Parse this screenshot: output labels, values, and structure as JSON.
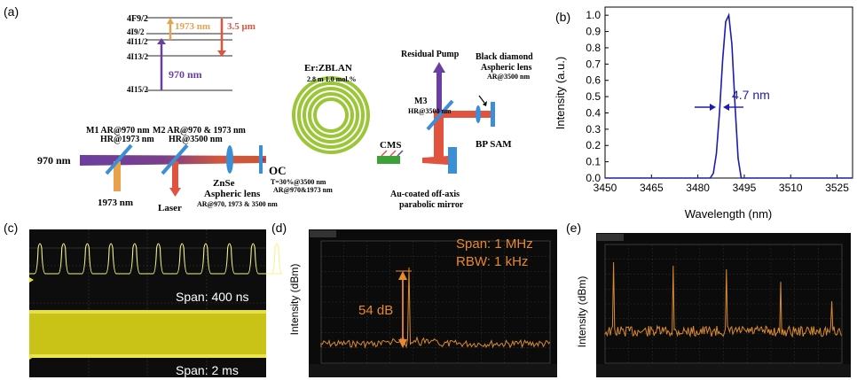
{
  "panels": {
    "a": "(a)",
    "b": "(b)",
    "c": "(c)",
    "d": "(d)",
    "e": "(e)"
  },
  "energy_levels": {
    "f92": "4F9/2",
    "i92": "4I9/2",
    "i112": "4I11/2",
    "i132": "4I13/2",
    "i152": "4I15/2",
    "pump_1973": "1973 nm",
    "emission_35": "3.5 μm",
    "pump_970": "970 nm"
  },
  "setup": {
    "m1_label": "M1 AR@970 nm",
    "m1_hr": "HR@1973 nm",
    "m2_label": "M2 AR@970 & 1973 nm",
    "m2_hr": "HR@3500 nm",
    "input_970": "970 nm",
    "out_1973": "1973 nm",
    "laser": "Laser",
    "znse": "ZnSe",
    "aspheric": "Aspheric lens",
    "aspheric_ar": "AR@970, 1973 & 3500 nm",
    "oc": "OC",
    "oc_t": "T=30%@3500  nm",
    "oc_ar": "AR@970&1973  nm",
    "fiber": "Er:ZBLAN",
    "fiber_spec": "2.8 m 1.0 mol.%",
    "cms": "CMS",
    "residual": "Residual Pump",
    "m3": "M3",
    "m3_hr": "HR@3500 nm",
    "black_diamond": "Black diamond",
    "aspheric2": "Aspheric lens",
    "aspheric2_ar": "AR@3500 nm",
    "bp_sam": "BP SAM",
    "au_mirror1": "Au-coated off-axis",
    "au_mirror2": "parabolic mirror"
  },
  "spectrum": {
    "ylabel": "Intensity (a.u.)",
    "xlabel": "Wavelength (nm)",
    "fwhm_label": "4.7 nm"
  },
  "chart_data": {
    "type": "line",
    "title": "",
    "xlabel": "Wavelength (nm)",
    "ylabel": "Intensity (a.u.)",
    "xlim": [
      3450,
      3530
    ],
    "ylim": [
      0,
      1.05
    ],
    "xticks": [
      "3450",
      "3465",
      "3480",
      "3495",
      "3510",
      "3525"
    ],
    "yticks": [
      "0.0",
      "0.1",
      "0.2",
      "0.3",
      "0.4",
      "0.5",
      "0.6",
      "0.7",
      "0.8",
      "0.9",
      "1.0"
    ],
    "x": [
      3450,
      3484,
      3485,
      3486,
      3487,
      3488,
      3489,
      3490,
      3491,
      3492,
      3493,
      3494,
      3530
    ],
    "y": [
      0.0,
      0.0,
      0.03,
      0.15,
      0.4,
      0.72,
      0.96,
      1.0,
      0.82,
      0.45,
      0.12,
      0.0,
      0.0
    ]
  },
  "oscilloscope": {
    "span1": "Span: 400 ns",
    "span2": "Span: 2 ms"
  },
  "rf1": {
    "ylabel": "Intensity (dBm)",
    "span": "Span: 1 MHz",
    "rbw": "RBW: 1 kHz",
    "snr": "54 dB"
  },
  "rf2": {
    "ylabel": "Intensity (dBm)"
  }
}
